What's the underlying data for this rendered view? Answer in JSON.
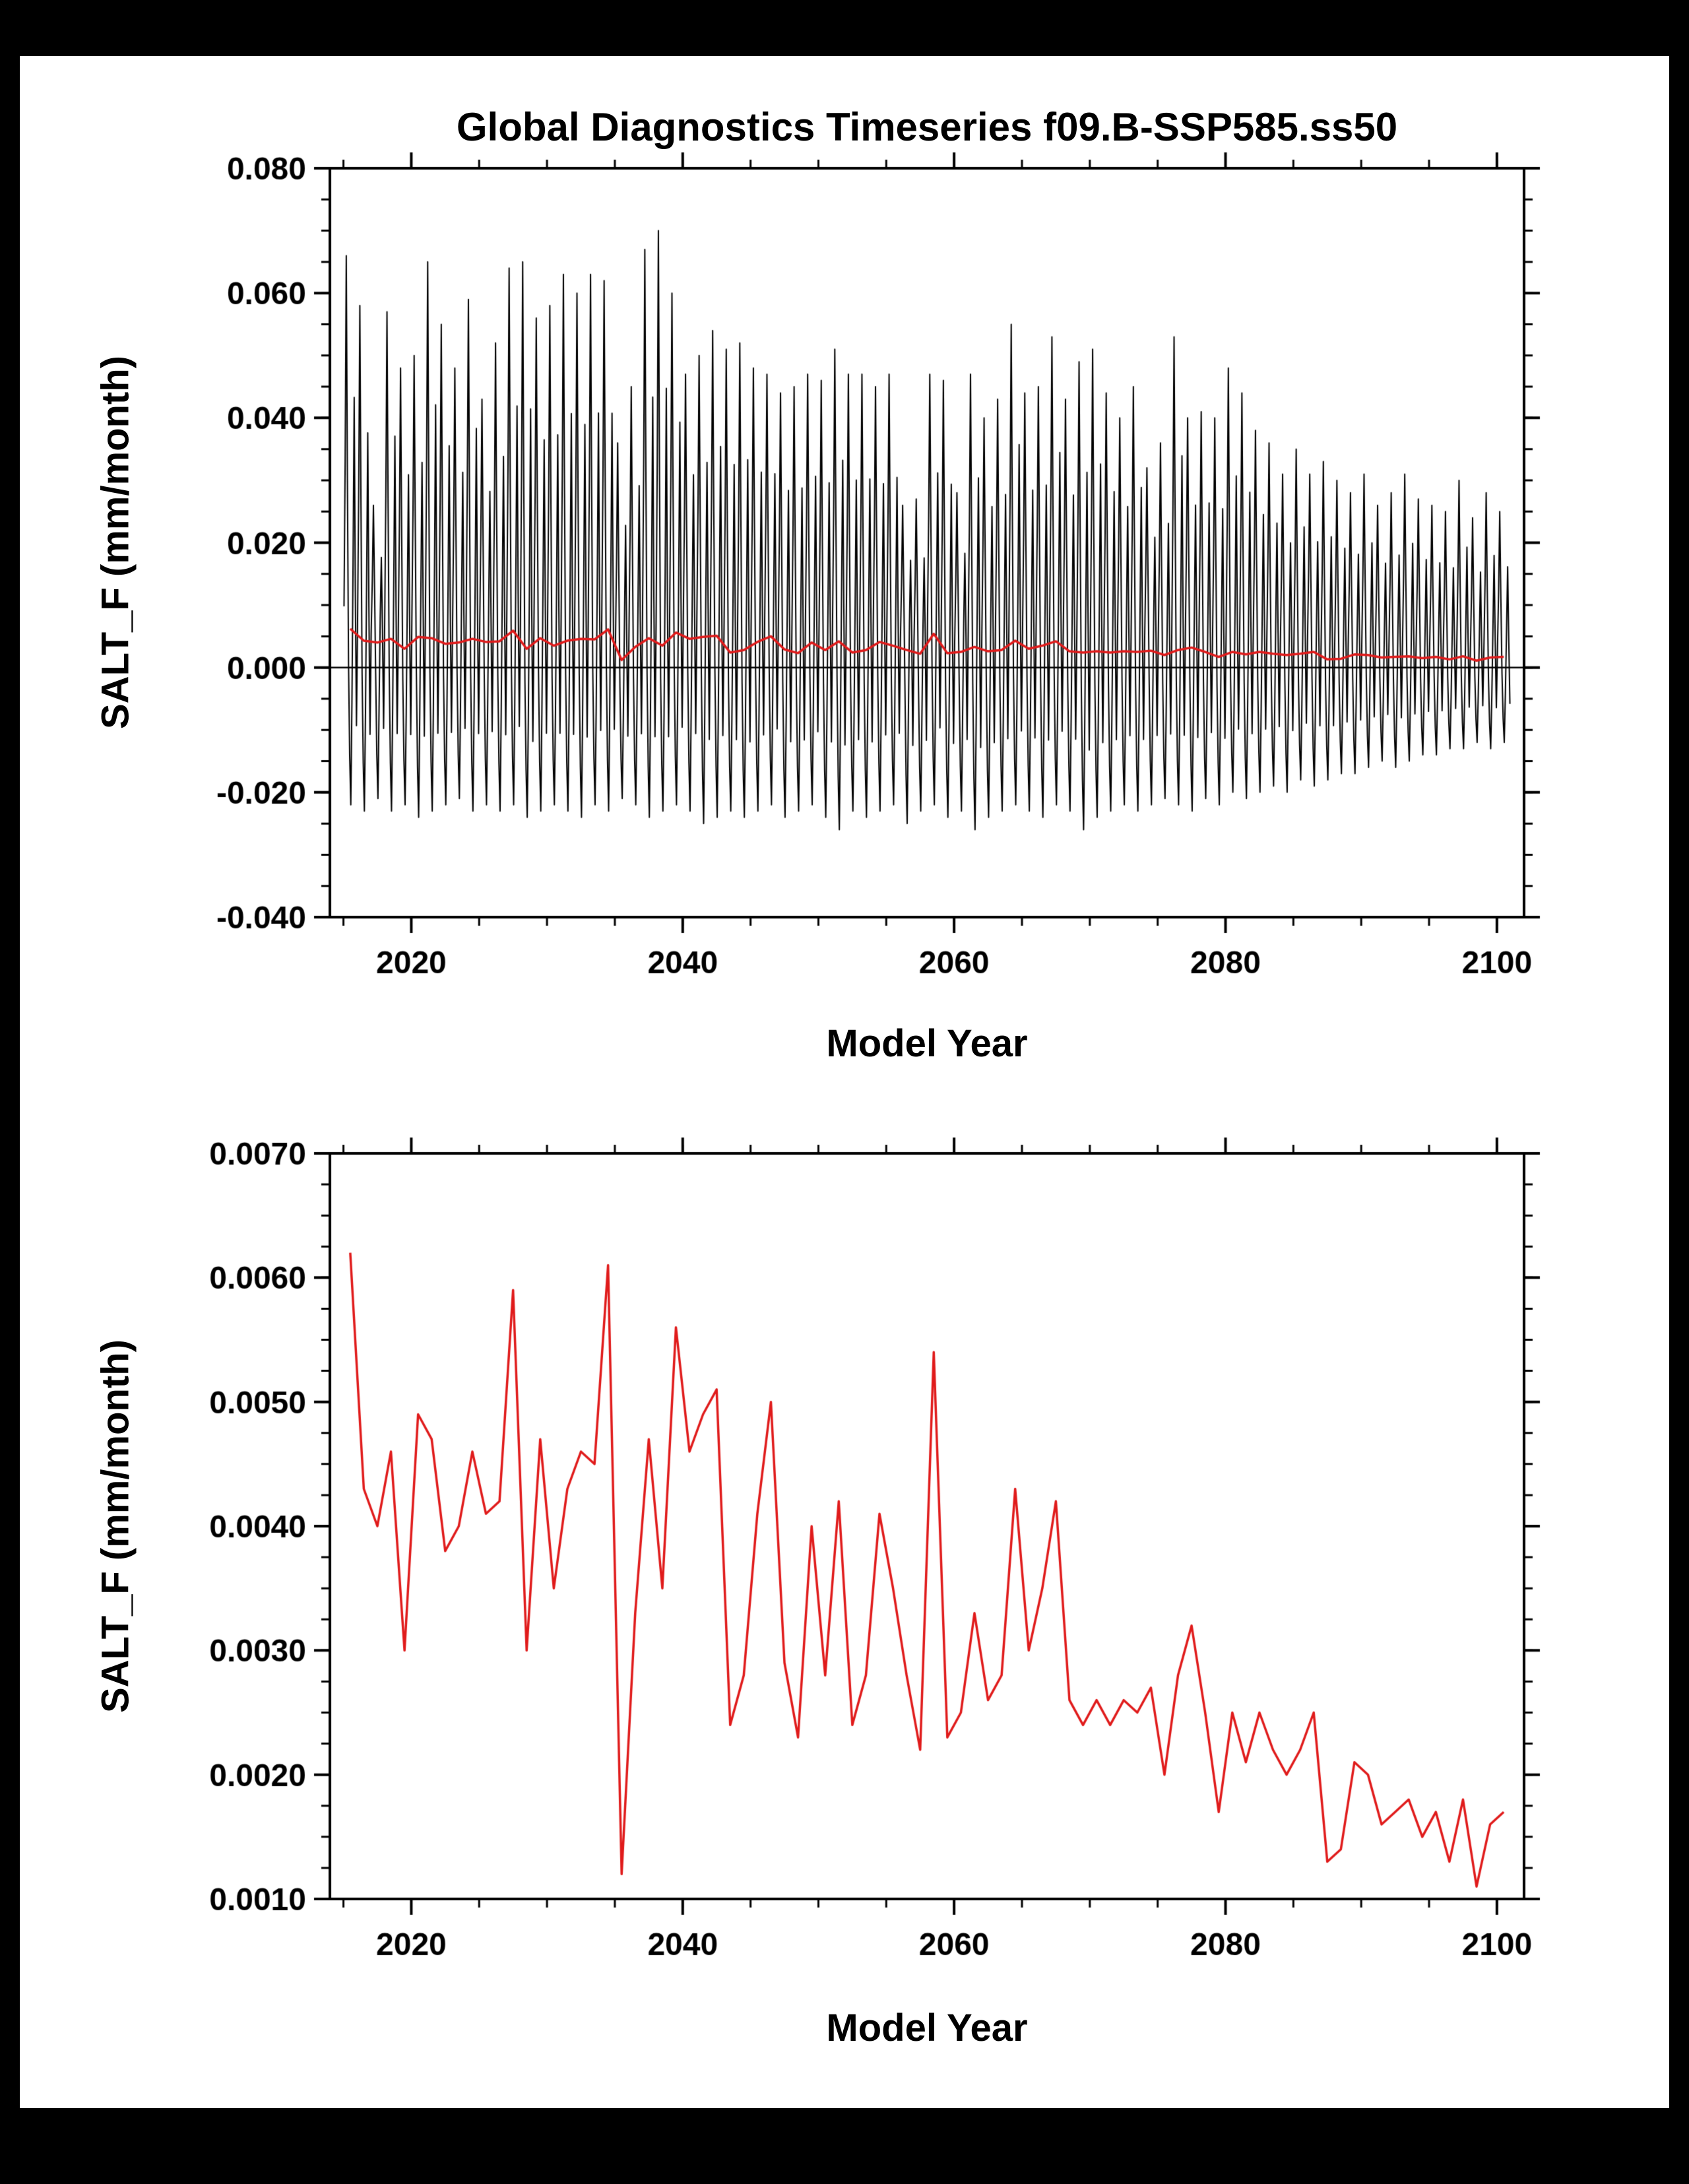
{
  "colors": {
    "background": "#000000",
    "panel": "#ffffff",
    "axis": "#000000",
    "monthly_series": "#000000",
    "annual_series": "#e01b1b"
  },
  "chart_data": [
    {
      "type": "line",
      "title": "Global Diagnostics Timeseries f09.B-SSP585.ss50",
      "xlabel": "Model Year",
      "ylabel": "SALT_F (mm/month)",
      "xlim": [
        2014,
        2102
      ],
      "ylim": [
        -0.04,
        0.08
      ],
      "grid": false,
      "legend": "none",
      "zero_line": true,
      "xtick_values": [
        2020,
        2040,
        2060,
        2080,
        2100
      ],
      "xtick_labels": [
        "2020",
        "2040",
        "2060",
        "2080",
        "2100"
      ],
      "xtick_minor_step": 5,
      "ytick_values": [
        -0.04,
        -0.02,
        0.0,
        0.02,
        0.04,
        0.06,
        0.08
      ],
      "ytick_labels": [
        "-0.040",
        "-0.020",
        "0.000",
        "0.020",
        "0.040",
        "0.060",
        "0.080"
      ],
      "ytick_minor_step": 0.005,
      "series": [
        {
          "name": "monthly-salt-flux",
          "color": "#000000",
          "width": 2,
          "derive": "monthly"
        },
        {
          "name": "annual-mean-salt-flux",
          "color": "#e01b1b",
          "width": 3.5,
          "derive": "annual"
        }
      ]
    },
    {
      "type": "line",
      "title": "",
      "xlabel": "Model Year",
      "ylabel": "SALT_F (mm/month)",
      "xlim": [
        2014,
        2102
      ],
      "ylim": [
        0.001,
        0.007
      ],
      "grid": false,
      "legend": "none",
      "zero_line": false,
      "xtick_values": [
        2020,
        2040,
        2060,
        2080,
        2100
      ],
      "xtick_labels": [
        "2020",
        "2040",
        "2060",
        "2080",
        "2100"
      ],
      "xtick_minor_step": 5,
      "ytick_values": [
        0.001,
        0.002,
        0.003,
        0.004,
        0.005,
        0.006,
        0.007
      ],
      "ytick_labels": [
        "0.0010",
        "0.0020",
        "0.0030",
        "0.0040",
        "0.0050",
        "0.0060",
        "0.0070"
      ],
      "ytick_minor_step": 0.00025,
      "series": [
        {
          "name": "annual-mean-salt-flux",
          "color": "#e01b1b",
          "width": 3.5,
          "derive": "annual"
        }
      ]
    }
  ],
  "timeseries": {
    "year_start": 2015,
    "year_end": 2100,
    "annual_mean": [
      0.0062,
      0.0043,
      0.004,
      0.0046,
      0.003,
      0.0049,
      0.0047,
      0.0038,
      0.004,
      0.0046,
      0.0041,
      0.0042,
      0.0059,
      0.003,
      0.0047,
      0.0035,
      0.0043,
      0.0046,
      0.0045,
      0.0061,
      0.0012,
      0.0033,
      0.0047,
      0.0035,
      0.0056,
      0.0046,
      0.0049,
      0.0051,
      0.0024,
      0.0028,
      0.0041,
      0.005,
      0.0029,
      0.0023,
      0.004,
      0.0028,
      0.0042,
      0.0024,
      0.0028,
      0.0041,
      0.0035,
      0.0028,
      0.0022,
      0.0054,
      0.0023,
      0.0025,
      0.0033,
      0.0026,
      0.0028,
      0.0043,
      0.003,
      0.0035,
      0.0042,
      0.0026,
      0.0024,
      0.0026,
      0.0024,
      0.0026,
      0.0025,
      0.0027,
      0.002,
      0.0028,
      0.0032,
      0.0025,
      0.0017,
      0.0025,
      0.0021,
      0.0025,
      0.0022,
      0.002,
      0.0022,
      0.0025,
      0.0013,
      0.0014,
      0.0021,
      0.002,
      0.0016,
      0.0017,
      0.0018,
      0.0015,
      0.0017,
      0.0013,
      0.0018,
      0.0011,
      0.0016,
      0.0017
    ],
    "monthly_pos_envelope": [
      0.066,
      0.058,
      0.026,
      0.057,
      0.048,
      0.05,
      0.065,
      0.055,
      0.048,
      0.059,
      0.043,
      0.052,
      0.064,
      0.065,
      0.056,
      0.058,
      0.063,
      0.06,
      0.063,
      0.062,
      0.036,
      0.045,
      0.067,
      0.07,
      0.06,
      0.047,
      0.05,
      0.054,
      0.051,
      0.052,
      0.048,
      0.047,
      0.044,
      0.045,
      0.047,
      0.046,
      0.051,
      0.047,
      0.047,
      0.045,
      0.047,
      0.026,
      0.027,
      0.047,
      0.046,
      0.028,
      0.047,
      0.04,
      0.043,
      0.055,
      0.044,
      0.045,
      0.053,
      0.043,
      0.049,
      0.051,
      0.044,
      0.04,
      0.045,
      0.032,
      0.036,
      0.053,
      0.04,
      0.041,
      0.04,
      0.048,
      0.044,
      0.038,
      0.036,
      0.031,
      0.035,
      0.031,
      0.033,
      0.03,
      0.028,
      0.031,
      0.026,
      0.028,
      0.031,
      0.027,
      0.026,
      0.025,
      0.03,
      0.024,
      0.028,
      0.025
    ],
    "monthly_neg_envelope": [
      0.022,
      0.023,
      0.021,
      0.023,
      0.022,
      0.024,
      0.023,
      0.022,
      0.021,
      0.023,
      0.022,
      0.023,
      0.022,
      0.024,
      0.023,
      0.022,
      0.023,
      0.024,
      0.022,
      0.023,
      0.021,
      0.022,
      0.024,
      0.023,
      0.022,
      0.023,
      0.025,
      0.024,
      0.023,
      0.024,
      0.023,
      0.022,
      0.024,
      0.023,
      0.022,
      0.024,
      0.026,
      0.023,
      0.024,
      0.023,
      0.022,
      0.025,
      0.023,
      0.022,
      0.024,
      0.023,
      0.026,
      0.024,
      0.023,
      0.022,
      0.023,
      0.024,
      0.022,
      0.023,
      0.026,
      0.024,
      0.023,
      0.022,
      0.023,
      0.022,
      0.021,
      0.022,
      0.023,
      0.021,
      0.022,
      0.02,
      0.021,
      0.02,
      0.019,
      0.02,
      0.018,
      0.019,
      0.018,
      0.017,
      0.017,
      0.016,
      0.015,
      0.016,
      0.015,
      0.014,
      0.014,
      0.013,
      0.013,
      0.012,
      0.013,
      0.012
    ],
    "seasonal_shape": [
      0.06,
      0.45,
      1.0,
      0.4,
      -0.2,
      -0.72,
      -1.0,
      -0.42,
      0.18,
      0.62,
      0.1,
      -0.55
    ]
  }
}
